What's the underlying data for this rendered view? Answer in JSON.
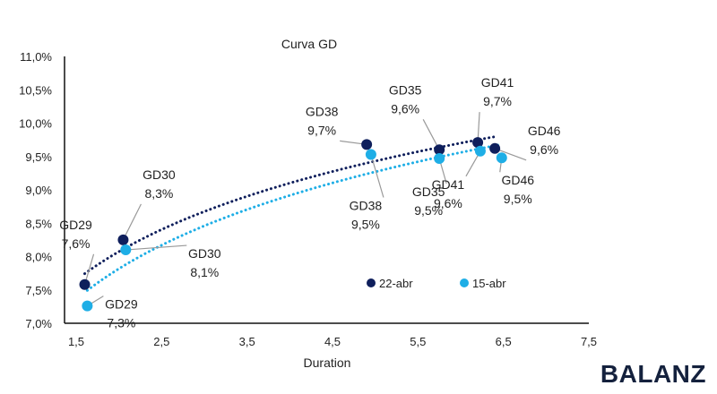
{
  "brand": "BALANZ",
  "chart_data": {
    "type": "scatter",
    "title": "Curva GD",
    "xlabel": "Duration",
    "ylabel": "",
    "xlim": [
      1.5,
      7.5
    ],
    "ylim": [
      7.0,
      11.0
    ],
    "xticks": [
      "1,5",
      "2,5",
      "3,5",
      "4,5",
      "5,5",
      "6,5",
      "7,5"
    ],
    "xtick_values": [
      1.5,
      2.5,
      3.5,
      4.5,
      5.5,
      6.5,
      7.5
    ],
    "yticks": [
      "7,0%",
      "7,5%",
      "8,0%",
      "8,5%",
      "9,0%",
      "9,5%",
      "10,0%",
      "10,5%",
      "11,0%"
    ],
    "ytick_values": [
      7.0,
      7.5,
      8.0,
      8.5,
      9.0,
      9.5,
      10.0,
      10.5,
      11.0
    ],
    "grid": false,
    "legend": "bottom-right",
    "series": [
      {
        "name": "22-abr",
        "color": "#0f1f5c",
        "trendline": "logarithmic dotted",
        "points": [
          {
            "label": "GD29",
            "value_label": "7,6%",
            "x": 1.6,
            "y": 7.58
          },
          {
            "label": "GD30",
            "value_label": "8,3%",
            "x": 2.05,
            "y": 8.25
          },
          {
            "label": "GD38",
            "value_label": "9,7%",
            "x": 4.9,
            "y": 9.68
          },
          {
            "label": "GD35",
            "value_label": "9,6%",
            "x": 5.75,
            "y": 9.6
          },
          {
            "label": "GD41",
            "value_label": "9,7%",
            "x": 6.2,
            "y": 9.71
          },
          {
            "label": "GD46",
            "value_label": "9,6%",
            "x": 6.4,
            "y": 9.62
          }
        ]
      },
      {
        "name": "15-abr",
        "color": "#1eaee6",
        "trendline": "logarithmic dotted",
        "points": [
          {
            "label": "GD29",
            "value_label": "7,3%",
            "x": 1.63,
            "y": 7.26
          },
          {
            "label": "GD30",
            "value_label": "8,1%",
            "x": 2.08,
            "y": 8.1
          },
          {
            "label": "GD38",
            "value_label": "9,5%",
            "x": 4.95,
            "y": 9.53
          },
          {
            "label": "GD35",
            "value_label": "9,5%",
            "x": 5.75,
            "y": 9.47
          },
          {
            "label": "GD41",
            "value_label": "9,6%",
            "x": 6.23,
            "y": 9.58
          },
          {
            "label": "GD46",
            "value_label": "9,5%",
            "x": 6.48,
            "y": 9.48
          }
        ]
      }
    ]
  }
}
